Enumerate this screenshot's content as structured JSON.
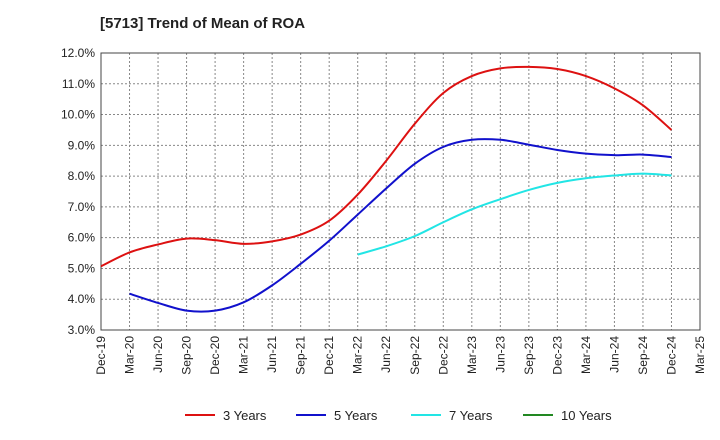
{
  "chart_data": {
    "type": "line",
    "title": "[5713]  Trend of Mean of ROA",
    "xlabel": "",
    "ylabel": "",
    "x_ticks": [
      "Dec-19",
      "Mar-20",
      "Jun-20",
      "Sep-20",
      "Dec-20",
      "Mar-21",
      "Jun-21",
      "Sep-21",
      "Dec-21",
      "Mar-22",
      "Jun-22",
      "Sep-22",
      "Dec-22",
      "Mar-23",
      "Jun-23",
      "Sep-23",
      "Dec-23",
      "Mar-24",
      "Jun-24",
      "Sep-24",
      "Dec-24",
      "Mar-25"
    ],
    "y_ticks": [
      "3.0%",
      "4.0%",
      "5.0%",
      "6.0%",
      "7.0%",
      "8.0%",
      "9.0%",
      "10.0%",
      "11.0%",
      "12.0%"
    ],
    "ylim": [
      3.0,
      12.0
    ],
    "grid": true,
    "legend_position": "bottom",
    "series": [
      {
        "name": "3 Years",
        "color": "#dd1111",
        "points": [
          [
            "Dec-19",
            5.07
          ],
          [
            "Mar-20",
            5.52
          ],
          [
            "Jun-20",
            5.78
          ],
          [
            "Sep-20",
            5.97
          ],
          [
            "Dec-20",
            5.92
          ],
          [
            "Mar-21",
            5.8
          ],
          [
            "Jun-21",
            5.88
          ],
          [
            "Sep-21",
            6.1
          ],
          [
            "Dec-21",
            6.55
          ],
          [
            "Mar-22",
            7.4
          ],
          [
            "Jun-22",
            8.5
          ],
          [
            "Sep-22",
            9.7
          ],
          [
            "Dec-22",
            10.7
          ],
          [
            "Mar-23",
            11.25
          ],
          [
            "Jun-23",
            11.5
          ],
          [
            "Sep-23",
            11.55
          ],
          [
            "Dec-23",
            11.48
          ],
          [
            "Mar-24",
            11.25
          ],
          [
            "Jun-24",
            10.85
          ],
          [
            "Sep-24",
            10.3
          ],
          [
            "Dec-24",
            9.5
          ]
        ]
      },
      {
        "name": "5 Years",
        "color": "#1111cc",
        "points": [
          [
            "Mar-20",
            4.18
          ],
          [
            "Jun-20",
            3.88
          ],
          [
            "Sep-20",
            3.63
          ],
          [
            "Dec-20",
            3.63
          ],
          [
            "Mar-21",
            3.9
          ],
          [
            "Jun-21",
            4.45
          ],
          [
            "Sep-21",
            5.15
          ],
          [
            "Dec-21",
            5.9
          ],
          [
            "Mar-22",
            6.75
          ],
          [
            "Jun-22",
            7.6
          ],
          [
            "Sep-22",
            8.4
          ],
          [
            "Dec-22",
            8.95
          ],
          [
            "Mar-23",
            9.18
          ],
          [
            "Jun-23",
            9.18
          ],
          [
            "Sep-23",
            9.02
          ],
          [
            "Dec-23",
            8.85
          ],
          [
            "Mar-24",
            8.73
          ],
          [
            "Jun-24",
            8.68
          ],
          [
            "Sep-24",
            8.7
          ],
          [
            "Dec-24",
            8.62
          ]
        ]
      },
      {
        "name": "7 Years",
        "color": "#22e5e5",
        "points": [
          [
            "Mar-22",
            5.45
          ],
          [
            "Jun-22",
            5.72
          ],
          [
            "Sep-22",
            6.05
          ],
          [
            "Dec-22",
            6.5
          ],
          [
            "Mar-23",
            6.92
          ],
          [
            "Jun-23",
            7.25
          ],
          [
            "Sep-23",
            7.55
          ],
          [
            "Dec-23",
            7.78
          ],
          [
            "Mar-24",
            7.93
          ],
          [
            "Jun-24",
            8.02
          ],
          [
            "Sep-24",
            8.08
          ],
          [
            "Dec-24",
            8.02
          ]
        ]
      },
      {
        "name": "10 Years",
        "color": "#228822",
        "points": []
      }
    ]
  }
}
